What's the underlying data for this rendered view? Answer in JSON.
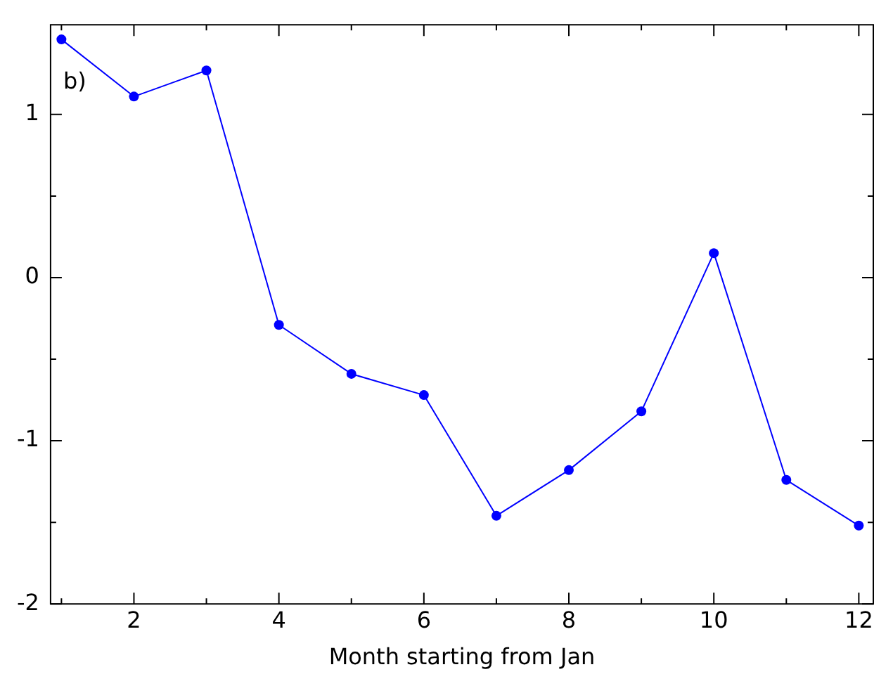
{
  "chart_data": {
    "type": "line",
    "xlabel": "Month starting from Jan",
    "annotations": [
      "b)"
    ],
    "x": [
      1,
      2,
      3,
      4,
      5,
      6,
      7,
      8,
      9,
      10,
      11,
      12
    ],
    "series": [
      {
        "color": "#0000ff",
        "values": [
          1.46,
          1.11,
          1.27,
          -0.29,
          -0.59,
          -0.72,
          -1.46,
          -1.18,
          -0.82,
          0.15,
          -1.24,
          -1.52
        ]
      }
    ],
    "xlim": [
      0.85,
      12.2
    ],
    "ylim": [
      -2,
      1.55
    ],
    "xticks": [
      {
        "value": 1,
        "label": null
      },
      2,
      {
        "value": 3,
        "label": null
      },
      4,
      {
        "value": 5,
        "label": null
      },
      6,
      {
        "value": 7,
        "label": null
      },
      8,
      {
        "value": 9,
        "label": null
      },
      10,
      {
        "value": 11,
        "label": null
      },
      12
    ],
    "yticks": [
      -2,
      {
        "value": -1.5,
        "label": null
      },
      -1,
      {
        "value": -0.5,
        "label": null
      },
      0,
      {
        "value": 0.5,
        "label": null
      },
      1
    ],
    "grid": false,
    "legend": false,
    "marker": "circle",
    "line_style": "solid"
  }
}
